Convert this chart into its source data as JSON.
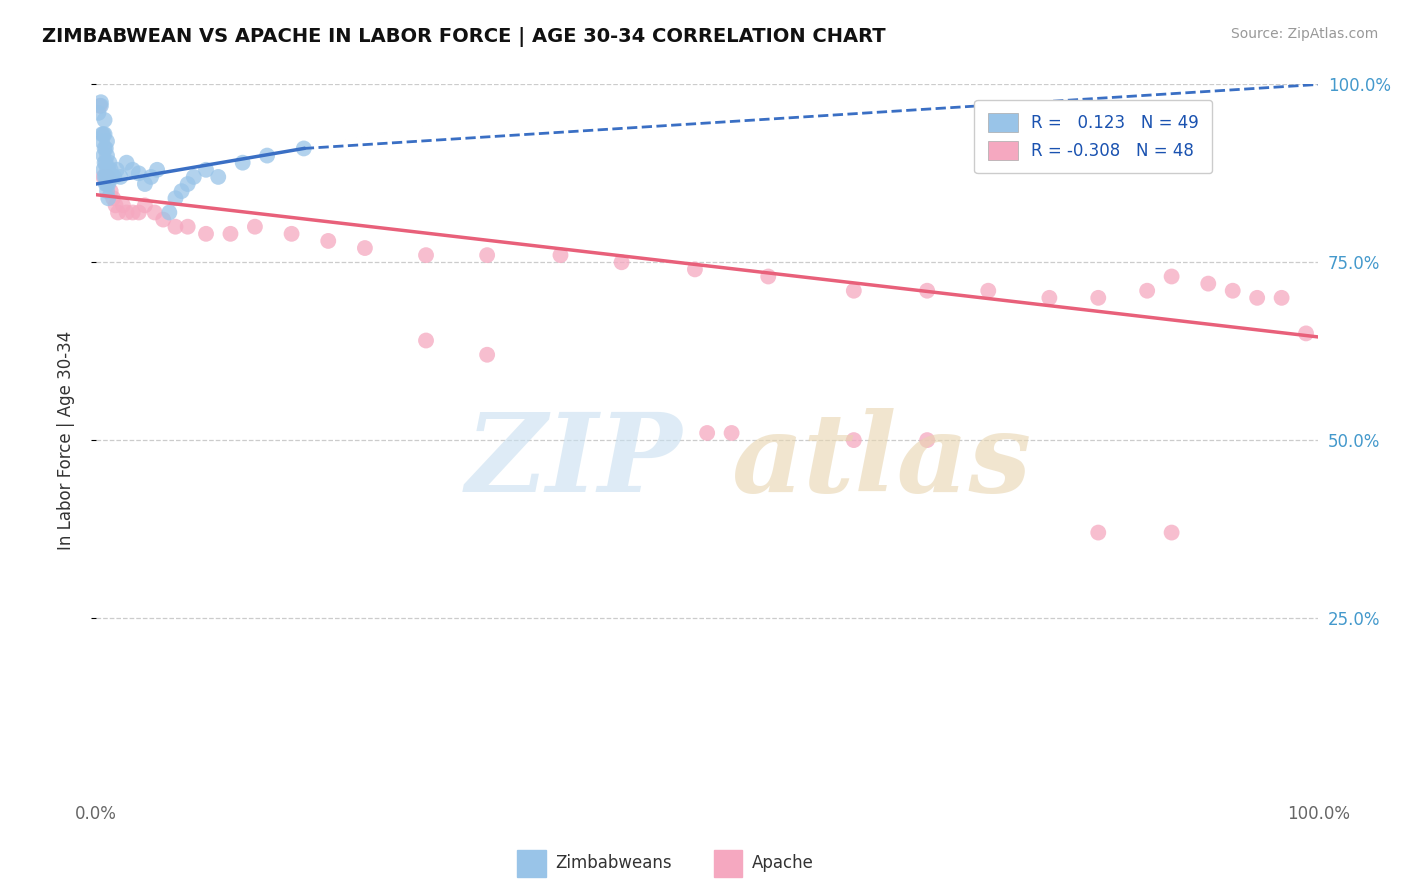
{
  "title": "ZIMBABWEAN VS APACHE IN LABOR FORCE | AGE 30-34 CORRELATION CHART",
  "source": "Source: ZipAtlas.com",
  "ylabel": "In Labor Force | Age 30-34",
  "xlim": [
    0.0,
    1.0
  ],
  "ylim": [
    0.0,
    1.0
  ],
  "legend_r1": "R =   0.123   N = 49",
  "legend_r2": "R = -0.308   N = 48",
  "blue_color": "#99c4e8",
  "blue_line_color": "#3a6fc4",
  "pink_color": "#f5a8c0",
  "pink_line_color": "#e8607a",
  "grid_color": "#cccccc",
  "zimbabwean_x": [
    0.002,
    0.004,
    0.004,
    0.005,
    0.005,
    0.006,
    0.006,
    0.006,
    0.007,
    0.007,
    0.007,
    0.007,
    0.007,
    0.008,
    0.008,
    0.008,
    0.008,
    0.009,
    0.009,
    0.009,
    0.009,
    0.009,
    0.009,
    0.01,
    0.01,
    0.01,
    0.011,
    0.011,
    0.012,
    0.013,
    0.015,
    0.017,
    0.02,
    0.025,
    0.03,
    0.035,
    0.04,
    0.045,
    0.05,
    0.06,
    0.065,
    0.07,
    0.075,
    0.08,
    0.09,
    0.1,
    0.12,
    0.14,
    0.17
  ],
  "zimbabwean_y": [
    0.96,
    0.97,
    0.975,
    0.92,
    0.93,
    0.88,
    0.9,
    0.93,
    0.87,
    0.89,
    0.91,
    0.93,
    0.95,
    0.86,
    0.87,
    0.89,
    0.91,
    0.85,
    0.86,
    0.87,
    0.88,
    0.9,
    0.92,
    0.84,
    0.86,
    0.88,
    0.87,
    0.89,
    0.88,
    0.87,
    0.87,
    0.88,
    0.87,
    0.89,
    0.88,
    0.875,
    0.86,
    0.87,
    0.88,
    0.82,
    0.84,
    0.85,
    0.86,
    0.87,
    0.88,
    0.87,
    0.89,
    0.9,
    0.91
  ],
  "apache_x": [
    0.003,
    0.006,
    0.01,
    0.012,
    0.014,
    0.016,
    0.018,
    0.022,
    0.025,
    0.03,
    0.035,
    0.04,
    0.048,
    0.055,
    0.065,
    0.075,
    0.09,
    0.11,
    0.13,
    0.16,
    0.19,
    0.22,
    0.27,
    0.32,
    0.38,
    0.43,
    0.49,
    0.55,
    0.62,
    0.68,
    0.73,
    0.78,
    0.82,
    0.86,
    0.88,
    0.91,
    0.93,
    0.95,
    0.97,
    0.99,
    0.27,
    0.32,
    0.5,
    0.52,
    0.62,
    0.68,
    0.82,
    0.88
  ],
  "apache_y": [
    0.97,
    0.87,
    0.87,
    0.85,
    0.84,
    0.83,
    0.82,
    0.83,
    0.82,
    0.82,
    0.82,
    0.83,
    0.82,
    0.81,
    0.8,
    0.8,
    0.79,
    0.79,
    0.8,
    0.79,
    0.78,
    0.77,
    0.76,
    0.76,
    0.76,
    0.75,
    0.74,
    0.73,
    0.71,
    0.71,
    0.71,
    0.7,
    0.7,
    0.71,
    0.73,
    0.72,
    0.71,
    0.7,
    0.7,
    0.65,
    0.64,
    0.62,
    0.51,
    0.51,
    0.5,
    0.5,
    0.37,
    0.37
  ],
  "blue_trendline_x": [
    0.0,
    0.17,
    1.0
  ],
  "blue_trendline_y_start": 0.86,
  "blue_trendline_y_mid": 0.91,
  "blue_trendline_y_end": 1.0,
  "pink_trendline_y_start": 0.845,
  "pink_trendline_y_end": 0.645
}
